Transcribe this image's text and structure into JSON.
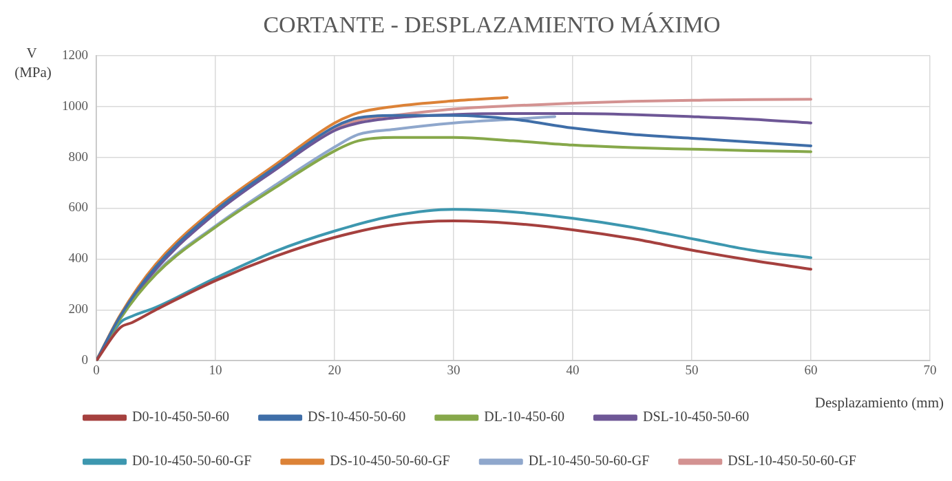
{
  "chart_data": {
    "type": "line",
    "title": "CORTANTE - DESPLAZAMIENTO MÁXIMO",
    "xlabel": "Desplazamiento (mm)",
    "ylabel": "V (MPa)",
    "xlim": [
      0,
      70
    ],
    "xticks": [
      0,
      10,
      20,
      30,
      40,
      50,
      60,
      70
    ],
    "ylim": [
      0,
      1200
    ],
    "yticks": [
      0,
      200,
      400,
      600,
      800,
      1000,
      1200
    ],
    "grid": true,
    "legend": "bottom",
    "marker": "none",
    "line_style": "solid",
    "series": [
      {
        "name": "D0-10-450-50-60",
        "color": "#a5403e",
        "x": [
          0,
          2,
          3,
          5,
          10,
          15,
          20,
          25,
          30,
          35,
          40,
          45,
          50,
          55,
          60
        ],
        "values": [
          0,
          130,
          150,
          200,
          315,
          410,
          485,
          535,
          550,
          540,
          515,
          480,
          435,
          395,
          360
        ]
      },
      {
        "name": "DS-10-450-50-60",
        "color": "#3f6ea8",
        "x": [
          0,
          2,
          5,
          10,
          15,
          20,
          22,
          25,
          30,
          35,
          40,
          45,
          50,
          55,
          60
        ],
        "values": [
          0,
          175,
          370,
          590,
          760,
          920,
          955,
          965,
          965,
          950,
          915,
          890,
          875,
          860,
          845
        ]
      },
      {
        "name": "DL-10-450-60",
        "color": "#86a84a",
        "x": [
          0,
          2,
          5,
          10,
          15,
          20,
          22,
          25,
          30,
          35,
          40,
          45,
          50,
          55,
          60
        ],
        "values": [
          0,
          165,
          340,
          525,
          680,
          825,
          865,
          878,
          878,
          865,
          848,
          838,
          832,
          826,
          822
        ]
      },
      {
        "name": "DSL-10-450-50-60",
        "color": "#6e5796",
        "x": [
          0,
          2,
          5,
          10,
          15,
          20,
          22,
          25,
          30,
          35,
          40,
          45,
          50,
          55,
          60
        ],
        "values": [
          0,
          170,
          360,
          580,
          750,
          905,
          935,
          955,
          968,
          972,
          972,
          968,
          960,
          950,
          935
        ]
      },
      {
        "name": "D0-10-450-50-60-GF",
        "color": "#3d97af",
        "x": [
          0,
          2,
          3,
          5,
          10,
          15,
          20,
          25,
          30,
          35,
          40,
          45,
          50,
          55,
          60
        ],
        "values": [
          0,
          150,
          175,
          210,
          325,
          430,
          510,
          570,
          595,
          585,
          560,
          525,
          480,
          435,
          405
        ]
      },
      {
        "name": "DS-10-450-50-60-GF",
        "color": "#dc8237",
        "x": [
          0,
          2,
          5,
          10,
          15,
          20,
          22,
          25,
          30,
          34.5
        ],
        "values": [
          0,
          180,
          380,
          600,
          770,
          935,
          975,
          1000,
          1022,
          1035
        ]
      },
      {
        "name": "DL-10-450-50-60-GF",
        "color": "#8fa7cc",
        "x": [
          0,
          2,
          5,
          10,
          15,
          20,
          22,
          25,
          30,
          35,
          38.5
        ],
        "values": [
          0,
          165,
          345,
          530,
          690,
          840,
          890,
          910,
          935,
          950,
          960
        ]
      },
      {
        "name": "DSL-10-450-50-60-GF",
        "color": "#d39291",
        "x": [
          0,
          2,
          5,
          10,
          15,
          20,
          22,
          25,
          30,
          35,
          40,
          45,
          50,
          55,
          60
        ],
        "values": [
          0,
          175,
          365,
          585,
          755,
          910,
          945,
          965,
          990,
          1003,
          1013,
          1020,
          1024,
          1027,
          1028
        ]
      }
    ]
  }
}
